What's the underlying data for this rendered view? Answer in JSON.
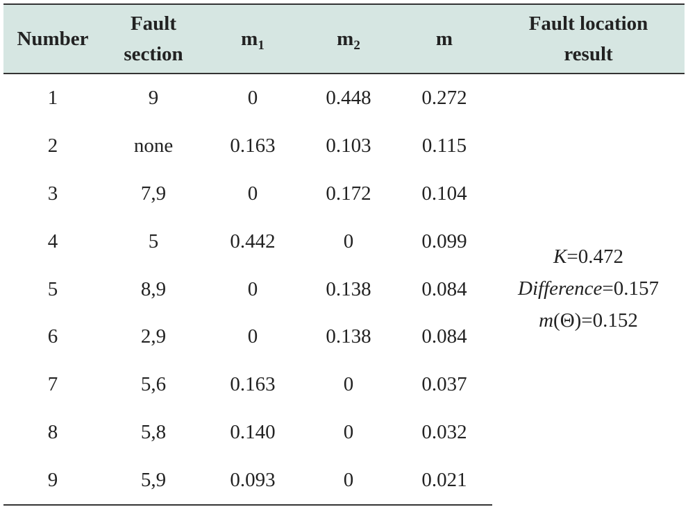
{
  "table": {
    "headers": {
      "number": "Number",
      "section_line1": "Fault",
      "section_line2": "section",
      "m1_base": "m",
      "m1_sub": "1",
      "m2_base": "m",
      "m2_sub": "2",
      "m": "m",
      "result_line1": "Fault location",
      "result_line2": "result"
    },
    "rows": [
      {
        "number": "1",
        "section": "9",
        "m1": "0",
        "m2": "0.448",
        "m": "0.272"
      },
      {
        "number": "2",
        "section": "none",
        "m1": "0.163",
        "m2": "0.103",
        "m": "0.115"
      },
      {
        "number": "3",
        "section": "7,9",
        "m1": "0",
        "m2": "0.172",
        "m": "0.104"
      },
      {
        "number": "4",
        "section": "5",
        "m1": "0.442",
        "m2": "0",
        "m": "0.099"
      },
      {
        "number": "5",
        "section": "8,9",
        "m1": "0",
        "m2": "0.138",
        "m": "0.084"
      },
      {
        "number": "6",
        "section": "2,9",
        "m1": "0",
        "m2": "0.138",
        "m": "0.084"
      },
      {
        "number": "7",
        "section": "5,6",
        "m1": "0.163",
        "m2": "0",
        "m": "0.037"
      },
      {
        "number": "8",
        "section": "5,8",
        "m1": "0.140",
        "m2": "0",
        "m": "0.032"
      },
      {
        "number": "9",
        "section": "5,9",
        "m1": "0.093",
        "m2": "0",
        "m": "0.021"
      }
    ],
    "result": {
      "k_label": "K",
      "k_value": "=0.472",
      "difference_label": "Difference",
      "difference_value": "=0.157",
      "m_theta_label": "m",
      "m_theta_value": "(Θ)=0.152"
    }
  },
  "colors": {
    "header_background": "#d6e6e2",
    "rule": "#333333",
    "text": "#222222"
  }
}
